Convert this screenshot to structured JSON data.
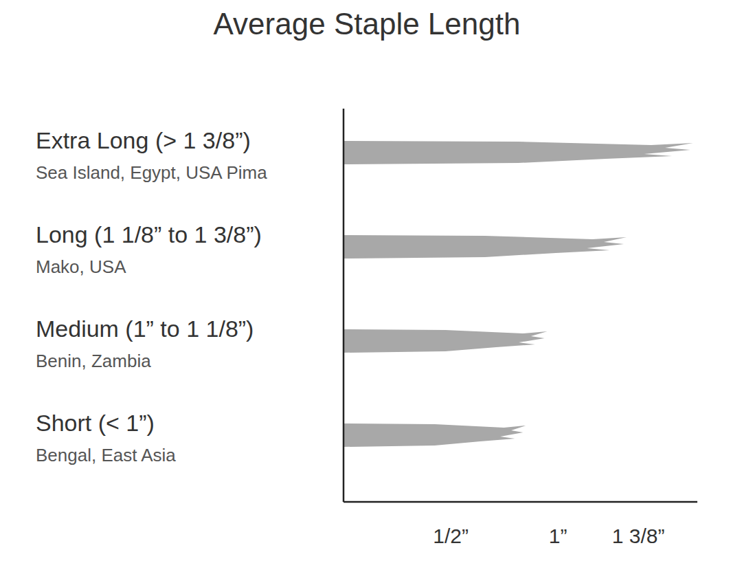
{
  "chart_data": {
    "type": "bar",
    "orientation": "horizontal",
    "title": "Average Staple Length",
    "categories": [
      "Extra Long (> 1 3/8”)",
      "Long (1 1/8” to 1 3/8”)",
      "Medium (1” to 1 1/8”)",
      "Short (< 1”)"
    ],
    "category_subtitles": [
      "Sea Island, Egypt, USA Pima",
      "Mako, USA",
      "Benin, Zambia",
      "Bengal, East Asia"
    ],
    "values": [
      1.63,
      1.32,
      0.95,
      0.85
    ],
    "color": "#a8a8a8",
    "xlim": [
      0,
      1.65
    ],
    "xticks": [
      {
        "value": 0.5,
        "label": "1/2”"
      },
      {
        "value": 1,
        "label": "1”"
      },
      {
        "value": 1.375,
        "label": "1 3/8”"
      }
    ],
    "tick_labels": "x",
    "grid": false
  }
}
